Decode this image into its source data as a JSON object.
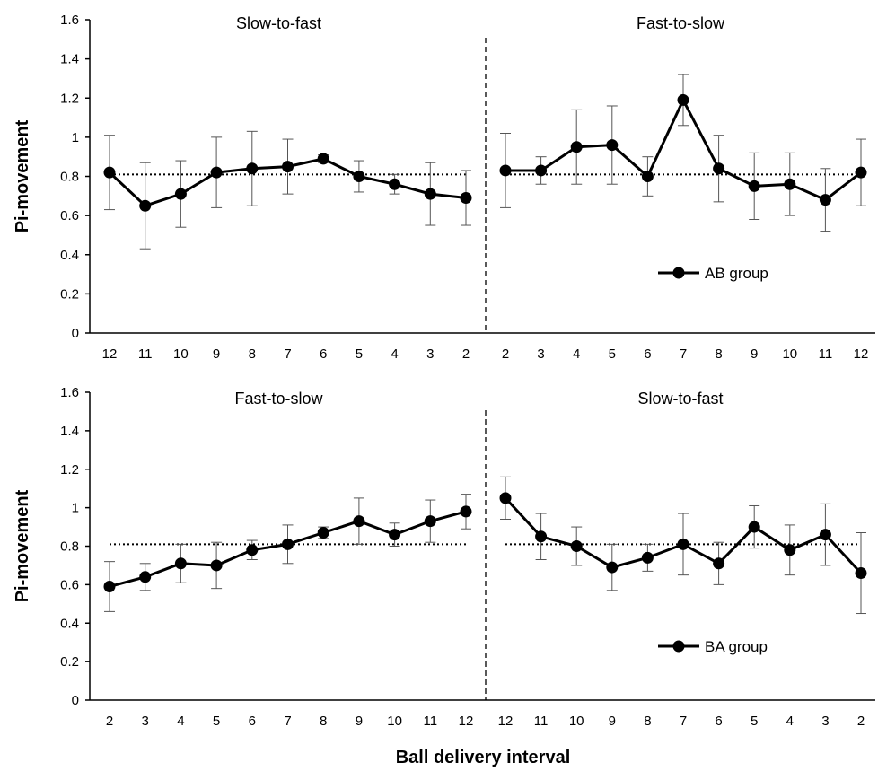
{
  "chart_data": [
    {
      "type": "line",
      "ylabel": "Pi-movement",
      "xlabel": "",
      "ylim": [
        0,
        1.6
      ],
      "yticks": [
        "0",
        "0.2",
        "0.4",
        "0.6",
        "0.8",
        "1",
        "1.2",
        "1.4",
        "1.6"
      ],
      "reference_line": 0.81,
      "legend": "AB group",
      "legend_position": "lower-right",
      "panels": [
        {
          "title": "Slow-to-fast",
          "categories": [
            "12",
            "11",
            "10",
            "9",
            "8",
            "7",
            "6",
            "5",
            "4",
            "3",
            "2"
          ],
          "values": [
            0.82,
            0.65,
            0.71,
            0.82,
            0.84,
            0.85,
            0.89,
            0.8,
            0.76,
            0.71,
            0.69
          ],
          "error": [
            0.19,
            0.22,
            0.17,
            0.18,
            0.19,
            0.14,
            0.02,
            0.08,
            0.05,
            0.16,
            0.14
          ]
        },
        {
          "title": "Fast-to-slow",
          "categories": [
            "2",
            "3",
            "4",
            "5",
            "6",
            "7",
            "8",
            "9",
            "10",
            "11",
            "12"
          ],
          "values": [
            0.83,
            0.83,
            0.95,
            0.96,
            0.8,
            1.19,
            0.84,
            0.75,
            0.76,
            0.68,
            0.82
          ],
          "error": [
            0.19,
            0.07,
            0.19,
            0.2,
            0.1,
            0.13,
            0.17,
            0.17,
            0.16,
            0.16,
            0.17
          ]
        }
      ]
    },
    {
      "type": "line",
      "ylabel": "Pi-movement",
      "xlabel": "Ball delivery interval",
      "ylim": [
        0,
        1.6
      ],
      "yticks": [
        "0",
        "0.2",
        "0.4",
        "0.6",
        "0.8",
        "1",
        "1.2",
        "1.4",
        "1.6"
      ],
      "reference_line": 0.81,
      "legend": "BA group",
      "legend_position": "lower-right",
      "panels": [
        {
          "title": "Fast-to-slow",
          "categories": [
            "2",
            "3",
            "4",
            "5",
            "6",
            "7",
            "8",
            "9",
            "10",
            "11",
            "12"
          ],
          "values": [
            0.59,
            0.64,
            0.71,
            0.7,
            0.78,
            0.81,
            0.87,
            0.93,
            0.86,
            0.93,
            0.98
          ],
          "error": [
            0.13,
            0.07,
            0.1,
            0.12,
            0.05,
            0.1,
            0.03,
            0.12,
            0.06,
            0.11,
            0.09
          ]
        },
        {
          "title": "Slow-to-fast",
          "categories": [
            "12",
            "11",
            "10",
            "9",
            "8",
            "7",
            "6",
            "5",
            "4",
            "3",
            "2"
          ],
          "values": [
            1.05,
            0.85,
            0.8,
            0.69,
            0.74,
            0.81,
            0.71,
            0.9,
            0.78,
            0.86,
            0.66
          ],
          "error": [
            0.11,
            0.12,
            0.1,
            0.12,
            0.07,
            0.16,
            0.11,
            0.11,
            0.13,
            0.16,
            0.21
          ]
        }
      ]
    }
  ]
}
